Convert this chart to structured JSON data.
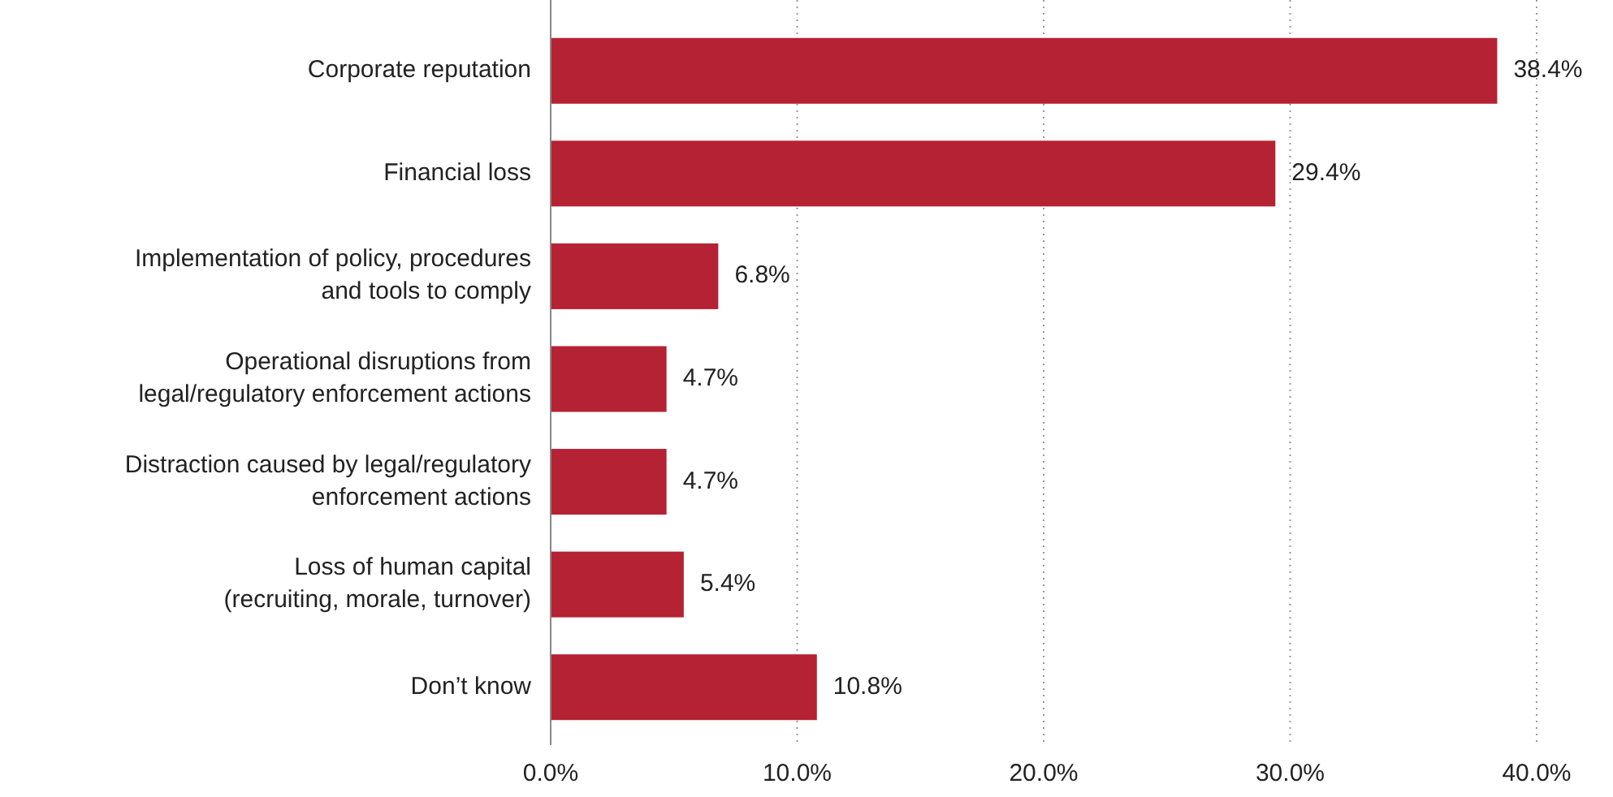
{
  "chart_data": {
    "type": "bar",
    "orientation": "horizontal",
    "categories": [
      "Corporate reputation",
      "Financial loss",
      "Implementation of policy, procedures\nand tools to comply",
      "Operational disruptions from\nlegal/regulatory enforcement actions",
      "Distraction caused by legal/regulatory\nenforcement actions",
      "Loss of human capital\n(recruiting, morale, turnover)",
      "Don’t know"
    ],
    "values": [
      38.4,
      29.4,
      6.8,
      4.7,
      4.7,
      5.4,
      10.8
    ],
    "value_labels": [
      "38.4%",
      "29.4%",
      "6.8%",
      "4.7%",
      "4.7%",
      "5.4%",
      "10.8%"
    ],
    "color": "#b52234",
    "xlim": [
      0,
      40
    ],
    "xticks": [
      {
        "value": 0,
        "label": "0.0%"
      },
      {
        "value": 10,
        "label": "10.0%"
      },
      {
        "value": 20,
        "label": "20.0%"
      },
      {
        "value": 30,
        "label": "30.0%"
      },
      {
        "value": 40,
        "label": "40.0%"
      }
    ],
    "grid": "x"
  }
}
